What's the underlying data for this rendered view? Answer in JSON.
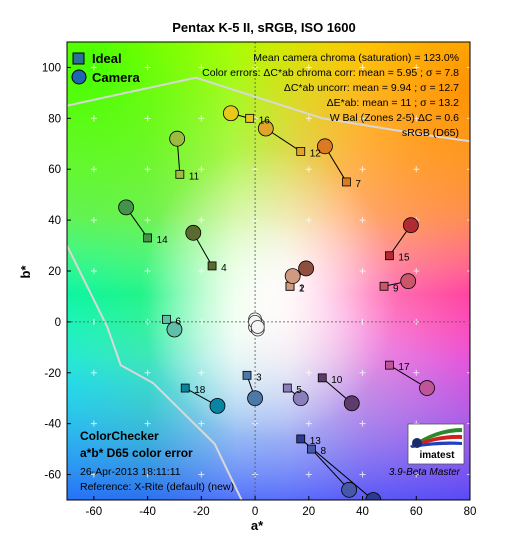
{
  "chart_data": {
    "type": "scatter",
    "title": "Pentax K-5 II, sRGB, ISO 1600",
    "xlabel": "a*",
    "ylabel": "b*",
    "xlim": [
      -70,
      80
    ],
    "ylim": [
      -70,
      110
    ],
    "x_ticks": [
      -60,
      -40,
      -20,
      0,
      20,
      40,
      60,
      80
    ],
    "y_ticks": [
      -60,
      -40,
      -20,
      0,
      20,
      40,
      60,
      80,
      100
    ],
    "legend": {
      "placement": "top-left",
      "items": [
        {
          "label": "Ideal",
          "marker": "square"
        },
        {
          "label": "Camera",
          "marker": "circle"
        }
      ]
    },
    "stats_lines": [
      "Mean camera chroma (saturation) = 123.0%",
      "Color errors: ΔC*ab chroma corr:  mean = 5.95 ;  σ = 7.8",
      "ΔC*ab uncorr:  mean = 9.94 ;  σ = 12.7",
      "ΔE*ab:  mean = 11 ;  σ = 13.2",
      "W Bal (Zones 2-5) ΔC = 0.6",
      "sRGB (D65)"
    ],
    "footer": {
      "title": "ColorChecker",
      "subtitle": "a*b* D65 color error",
      "date": "26-Apr-2013 18:11:11",
      "reference": "Reference: X-Rite (default) (new)",
      "logo": "imatest",
      "version": "3.9-Beta  Master"
    },
    "patches": [
      {
        "id": "1",
        "ideal": [
          13,
          14
        ],
        "camera": [
          19,
          21
        ],
        "color": "#8f4f3f"
      },
      {
        "id": "2",
        "ideal": [
          13,
          14
        ],
        "camera": [
          14,
          18
        ],
        "color": "#d09a80"
      },
      {
        "id": "3",
        "ideal": [
          -3,
          -21
        ],
        "camera": [
          0,
          -30
        ],
        "color": "#4e78a8"
      },
      {
        "id": "4",
        "ideal": [
          -16,
          22
        ],
        "camera": [
          -23,
          35
        ],
        "color": "#5a6b30"
      },
      {
        "id": "5",
        "ideal": [
          12,
          -26
        ],
        "camera": [
          17,
          -30
        ],
        "color": "#8a7ebd"
      },
      {
        "id": "6",
        "ideal": [
          -33,
          1
        ],
        "camera": [
          -30,
          -3
        ],
        "color": "#62bda9"
      },
      {
        "id": "7",
        "ideal": [
          34,
          55
        ],
        "camera": [
          26,
          69
        ],
        "color": "#dc7a22"
      },
      {
        "id": "8",
        "ideal": [
          21,
          -50
        ],
        "camera": [
          35,
          -66
        ],
        "color": "#4857a8"
      },
      {
        "id": "9",
        "ideal": [
          48,
          14
        ],
        "camera": [
          57,
          16
        ],
        "color": "#c9566a"
      },
      {
        "id": "10",
        "ideal": [
          25,
          -22
        ],
        "camera": [
          36,
          -32
        ],
        "color": "#5e3b6c"
      },
      {
        "id": "11",
        "ideal": [
          -28,
          58
        ],
        "camera": [
          -29,
          72
        ],
        "color": "#9dbb40"
      },
      {
        "id": "12",
        "ideal": [
          17,
          67
        ],
        "camera": [
          4,
          76
        ],
        "color": "#e1a42a"
      },
      {
        "id": "13",
        "ideal": [
          17,
          -46
        ],
        "camera": [
          44,
          -70
        ],
        "color": "#2c3a96"
      },
      {
        "id": "14",
        "ideal": [
          -40,
          33
        ],
        "camera": [
          -48,
          45
        ],
        "color": "#44934a"
      },
      {
        "id": "15",
        "ideal": [
          50,
          26
        ],
        "camera": [
          58,
          38
        ],
        "color": "#b12c32"
      },
      {
        "id": "16",
        "ideal": [
          -2,
          80
        ],
        "camera": [
          -9,
          82
        ],
        "color": "#e8c81a"
      },
      {
        "id": "17",
        "ideal": [
          50,
          -17
        ],
        "camera": [
          64,
          -26
        ],
        "color": "#bf5598"
      },
      {
        "id": "18",
        "ideal": [
          -26,
          -26
        ],
        "camera": [
          -14,
          -33
        ],
        "color": "#0a85a1"
      }
    ],
    "neutral_points": [
      [
        0,
        1
      ],
      [
        1,
        -1
      ],
      [
        0,
        -2
      ],
      [
        1,
        -3
      ],
      [
        0,
        0
      ],
      [
        1,
        -2
      ]
    ]
  }
}
